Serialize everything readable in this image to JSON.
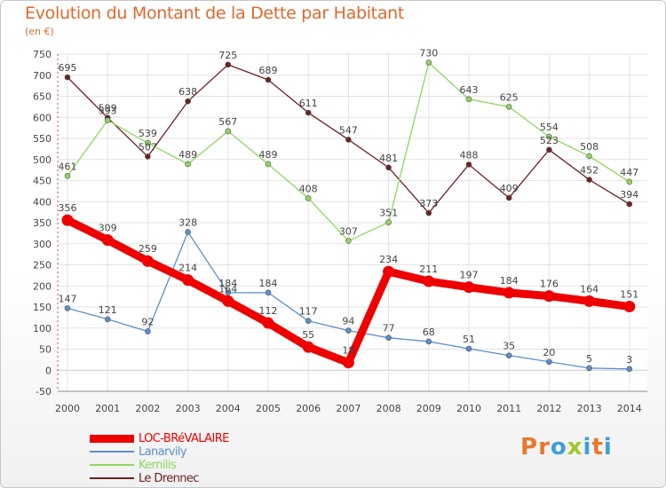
{
  "title": "Evolution du Montant de la Dette par Habitant",
  "subtitle": "(en €)",
  "logo": {
    "text": "Proxiti",
    "colors": [
      "#e8782a",
      "#e8782a",
      "#3da0d8",
      "#9fc72a",
      "#3da0d8",
      "#e8782a",
      "#3da0d8"
    ]
  },
  "chart_data": {
    "type": "line",
    "x": [
      "2000",
      "2001",
      "2002",
      "2003",
      "2004",
      "2005",
      "2006",
      "2007",
      "2008",
      "2009",
      "2010",
      "2011",
      "2012",
      "2013",
      "2014"
    ],
    "ylim": [
      -50,
      750
    ],
    "yticks": [
      -50,
      0,
      50,
      100,
      150,
      200,
      250,
      300,
      350,
      400,
      450,
      500,
      550,
      600,
      650,
      700,
      750
    ],
    "grid": true,
    "legend_position": "bottom-left",
    "series": [
      {
        "name": "LOC-BRéVALAIRE",
        "color": "#ee0000",
        "values": [
          356,
          309,
          259,
          214,
          164,
          112,
          55,
          18,
          234,
          211,
          197,
          184,
          176,
          164,
          151
        ],
        "labels": [
          "356",
          "309",
          "259",
          "214",
          "164",
          "112",
          "55",
          "18",
          "234",
          "211",
          "197",
          "184",
          "176",
          "164",
          "151"
        ]
      },
      {
        "name": "Lanarvily",
        "color": "#5a8fc9",
        "values": [
          147,
          121,
          92,
          328,
          184,
          184,
          117,
          94,
          77,
          68,
          51,
          35,
          20,
          5,
          3
        ],
        "labels": [
          "147",
          "121",
          "92",
          "328",
          "184",
          "184",
          "117",
          "94",
          "77",
          "68",
          "51",
          "35",
          "20",
          "5",
          "3"
        ]
      },
      {
        "name": "Kernilis",
        "color": "#8fd660",
        "values": [
          461,
          593,
          539,
          489,
          567,
          489,
          408,
          307,
          351,
          730,
          643,
          625,
          554,
          508,
          447
        ],
        "labels": [
          "461",
          "593",
          "539",
          "489",
          "567",
          "489",
          "408",
          "307",
          "351",
          "730",
          "643",
          "625",
          "554",
          "508",
          "447"
        ]
      },
      {
        "name": "Le Drennec",
        "color": "#6e2123",
        "values": [
          695,
          599,
          507,
          638,
          725,
          689,
          611,
          547,
          481,
          373,
          488,
          409,
          523,
          452,
          394
        ],
        "labels": [
          "695",
          "599",
          "507",
          "638",
          "725",
          "689",
          "611",
          "547",
          "481",
          "373",
          "488",
          "409",
          "523",
          "452",
          "394"
        ]
      }
    ]
  }
}
